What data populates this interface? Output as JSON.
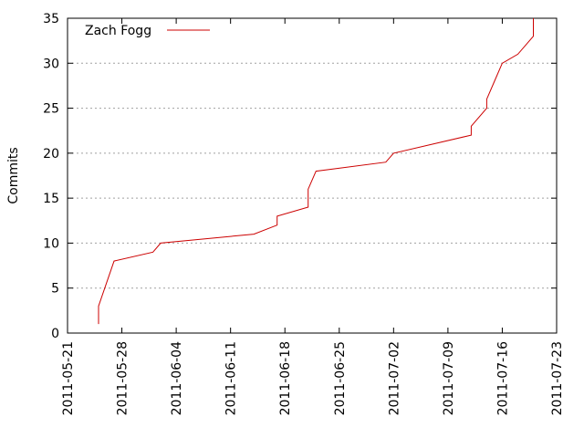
{
  "chart_data": {
    "type": "line",
    "title": "",
    "xlabel": "",
    "ylabel": "Commits",
    "x_type": "date",
    "xlim": [
      "2011-05-21",
      "2011-07-23"
    ],
    "ylim": [
      0,
      35
    ],
    "x_ticks": [
      "2011-05-21",
      "2011-05-28",
      "2011-06-04",
      "2011-06-11",
      "2011-06-18",
      "2011-06-25",
      "2011-07-02",
      "2011-07-09",
      "2011-07-16",
      "2011-07-23"
    ],
    "y_ticks": [
      "0",
      "5",
      "10",
      "15",
      "20",
      "25",
      "30",
      "35"
    ],
    "grid": true,
    "legend_position": "top-left",
    "series": [
      {
        "name": "Zach Fogg",
        "color": "#cc0000",
        "points": [
          [
            "2011-05-25",
            1
          ],
          [
            "2011-05-25",
            3
          ],
          [
            "2011-05-27",
            8
          ],
          [
            "2011-06-01",
            9
          ],
          [
            "2011-06-02",
            10
          ],
          [
            "2011-06-14",
            11
          ],
          [
            "2011-06-17",
            12
          ],
          [
            "2011-06-17",
            13
          ],
          [
            "2011-06-21",
            14
          ],
          [
            "2011-06-21",
            16
          ],
          [
            "2011-06-22",
            18
          ],
          [
            "2011-07-01",
            19
          ],
          [
            "2011-07-02",
            20
          ],
          [
            "2011-07-12",
            22
          ],
          [
            "2011-07-12",
            23
          ],
          [
            "2011-07-14",
            25
          ],
          [
            "2011-07-14",
            26
          ],
          [
            "2011-07-15",
            28
          ],
          [
            "2011-07-16",
            30
          ],
          [
            "2011-07-18",
            31
          ],
          [
            "2011-07-20",
            33
          ],
          [
            "2011-07-20",
            35
          ]
        ]
      }
    ]
  }
}
